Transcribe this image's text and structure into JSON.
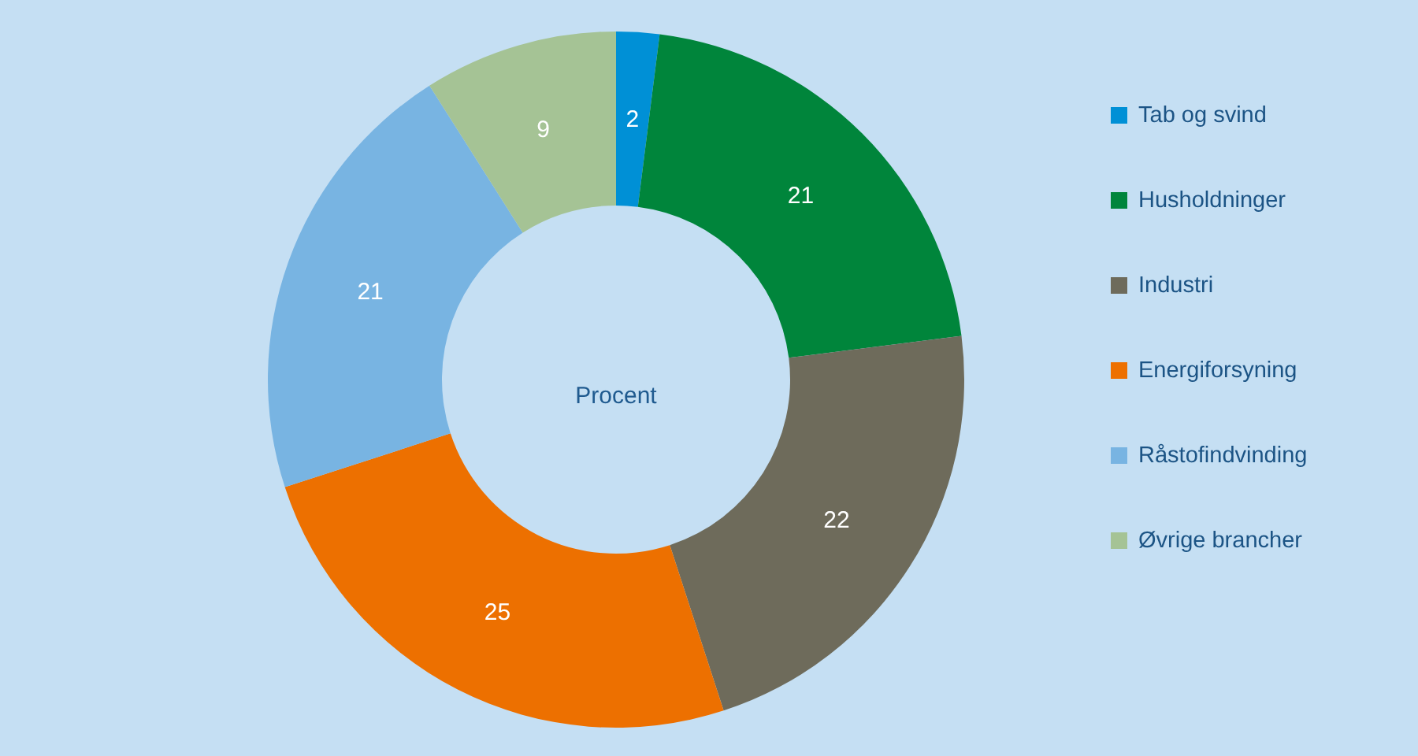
{
  "chart_data": {
    "type": "donut",
    "categories": [
      "Tab og svind",
      "Husholdninger",
      "Industri",
      "Energiforsyning",
      "Råstofindvinding",
      "Øvrige brancher"
    ],
    "values": [
      2,
      21,
      22,
      25,
      21,
      9
    ],
    "colors": [
      "#0090d6",
      "#00853b",
      "#6e6b5b",
      "#ed7000",
      "#78b4e2",
      "#a5c395"
    ],
    "data_labels": true,
    "legend": "right",
    "annotations": [
      "Procent"
    ]
  }
}
